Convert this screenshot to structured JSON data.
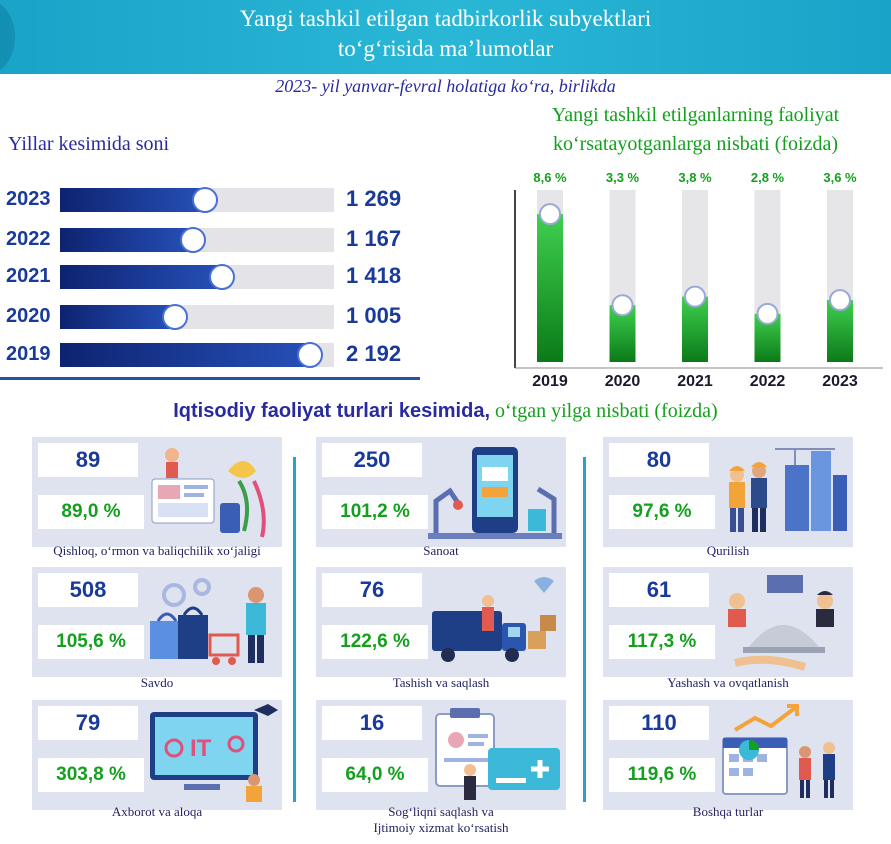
{
  "header": {
    "title_line1": "Yangi tashkil etilgan tadbirkorlik subyektlari",
    "title_line2": "to‘g‘risida ma’lumotlar",
    "subtitle": "2023- yil yanvar-fevral holatiga ko‘ra, birlikda"
  },
  "left_chart": {
    "title": "Yillar kesimida soni"
  },
  "right_chart": {
    "title_line1": "Yangi tashkil etilganlarning faoliyat",
    "title_line2": "ko‘rsatayotganlarga nisbati (foizda)"
  },
  "section": {
    "title_bold": "Iqtisodiy faoliyat turlari kesimida,",
    "title_rest": " o‘tgan yilga nisbati (foizda)"
  },
  "colors": {
    "header": "#1fa9cd",
    "navy": "#1a3a9a",
    "green": "#14a01e",
    "card_bg": "#dfe3ef",
    "divider": "#2b9fd0"
  },
  "chart_data": [
    {
      "type": "bar",
      "orientation": "horizontal",
      "title": "Yillar kesimida soni",
      "categories": [
        "2023",
        "2022",
        "2021",
        "2020",
        "2019"
      ],
      "values": [
        1269,
        1167,
        1418,
        1005,
        2192
      ],
      "value_labels": [
        "1 269",
        "1 167",
        "1 418",
        "1 005",
        "2 192"
      ],
      "xlim": [
        0,
        2400
      ]
    },
    {
      "type": "bar",
      "orientation": "vertical",
      "title": "Yangi tashkil etilganlarning faoliyat ko‘rsatayotganlarga nisbati (foizda)",
      "categories": [
        "2019",
        "2020",
        "2021",
        "2022",
        "2023"
      ],
      "values": [
        8.6,
        3.3,
        3.8,
        2.8,
        3.6
      ],
      "value_labels": [
        "8,6 %",
        "3,3 %",
        "3,8 %",
        "2,8 %",
        "3,6 %"
      ],
      "ylim": [
        0,
        10
      ]
    }
  ],
  "categories": [
    {
      "count": "89",
      "percent": "89,0 %",
      "label": "Qishloq, o‘rmon va baliqchilik xo‘jaligi",
      "icon": "agriculture-illustration"
    },
    {
      "count": "250",
      "percent": "101,2 %",
      "label": "Sanoat",
      "icon": "industry-illustration"
    },
    {
      "count": "80",
      "percent": "97,6 %",
      "label": "Qurilish",
      "icon": "construction-illustration"
    },
    {
      "count": "508",
      "percent": "105,6 %",
      "label": "Savdo",
      "icon": "trade-illustration"
    },
    {
      "count": "76",
      "percent": "122,6 %",
      "label": "Tashish va saqlash",
      "icon": "transport-illustration"
    },
    {
      "count": "61",
      "percent": "117,3 %",
      "label": "Yashash va ovqatlanish",
      "icon": "hospitality-illustration"
    },
    {
      "count": "79",
      "percent": "303,8 %",
      "label": "Axborot va aloqa",
      "icon": "it-illustration"
    },
    {
      "count": "16",
      "percent": "64,0 %",
      "label_line1": "Sog‘liqni saqlash va",
      "label_line2": "Ijtimoiy xizmat ko‘rsatish",
      "icon": "health-illustration"
    },
    {
      "count": "110",
      "percent": "119,6 %",
      "label": "Boshqa turlar",
      "icon": "other-services-illustration"
    }
  ]
}
